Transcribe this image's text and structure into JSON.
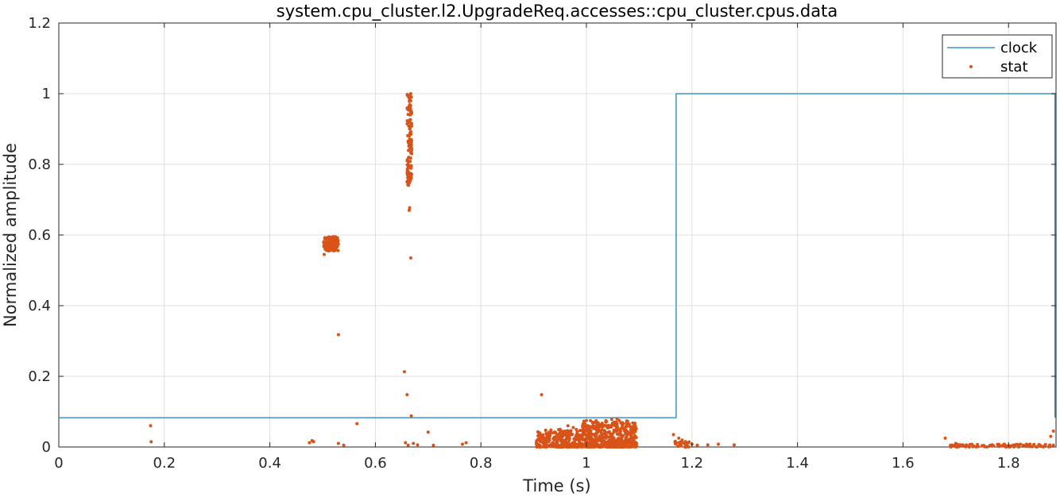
{
  "chart_data": {
    "type": "line+scatter",
    "title": "system.cpu_cluster.l2.UpgradeReq.accesses::cpu_cluster.cpus.data",
    "xlabel": "Time (s)",
    "ylabel": "Normalized amplitude",
    "xlim": [
      0,
      1.89
    ],
    "ylim": [
      0,
      1.2
    ],
    "xticks": [
      0,
      0.2,
      0.4,
      0.6,
      0.8,
      1,
      1.2,
      1.4,
      1.6,
      1.8
    ],
    "xtick_labels": [
      "0",
      "0.2",
      "0.4",
      "0.6",
      "0.8",
      "1",
      "1.2",
      "1.4",
      "1.6",
      "1.8"
    ],
    "yticks": [
      0,
      0.2,
      0.4,
      0.6,
      0.8,
      1,
      1.2
    ],
    "ytick_labels": [
      "0",
      "0.2",
      "0.4",
      "0.6",
      "0.8",
      "1",
      "1.2"
    ],
    "grid": true,
    "legend_position": "top-right",
    "series": [
      {
        "name": "clock",
        "kind": "step-line",
        "color": "#3b95c4",
        "x": [
          0,
          1.17,
          1.17,
          1.888,
          1.888
        ],
        "y": [
          0.083,
          0.083,
          1.0,
          1.0,
          0.083
        ]
      },
      {
        "name": "stat",
        "kind": "scatter",
        "color": "#d95319",
        "points": [
          [
            0.174,
            0.06
          ],
          [
            0.175,
            0.015
          ],
          [
            0.475,
            0.012
          ],
          [
            0.48,
            0.018
          ],
          [
            0.483,
            0.015
          ],
          [
            0.502,
            0.58
          ],
          [
            0.503,
            0.57
          ],
          [
            0.503,
            0.545
          ],
          [
            0.504,
            0.59
          ],
          [
            0.506,
            0.575
          ],
          [
            0.508,
            0.565
          ],
          [
            0.51,
            0.585
          ],
          [
            0.512,
            0.57
          ],
          [
            0.514,
            0.58
          ],
          [
            0.516,
            0.56
          ],
          [
            0.518,
            0.575
          ],
          [
            0.52,
            0.59
          ],
          [
            0.522,
            0.57
          ],
          [
            0.524,
            0.58
          ],
          [
            0.526,
            0.565
          ],
          [
            0.528,
            0.575
          ],
          [
            0.529,
            0.585
          ],
          [
            0.53,
            0.318
          ],
          [
            0.53,
            0.01
          ],
          [
            0.565,
            0.066
          ],
          [
            0.54,
            0.005
          ],
          [
            0.655,
            0.213
          ],
          [
            0.657,
            0.012
          ],
          [
            0.66,
            0.148
          ],
          [
            0.662,
            0.005
          ],
          [
            0.66,
            0.75
          ],
          [
            0.661,
            0.77
          ],
          [
            0.662,
            0.8
          ],
          [
            0.663,
            0.82
          ],
          [
            0.663,
            0.84
          ],
          [
            0.664,
            0.86
          ],
          [
            0.664,
            0.88
          ],
          [
            0.665,
            0.9
          ],
          [
            0.665,
            0.92
          ],
          [
            0.666,
            0.94
          ],
          [
            0.666,
            0.96
          ],
          [
            0.667,
            0.98
          ],
          [
            0.667,
            1.0
          ],
          [
            0.668,
            0.95
          ],
          [
            0.668,
            0.87
          ],
          [
            0.669,
            0.83
          ],
          [
            0.662,
            0.78
          ],
          [
            0.663,
            0.76
          ],
          [
            0.664,
            0.67
          ],
          [
            0.665,
            0.677
          ],
          [
            0.667,
            0.535
          ],
          [
            0.668,
            0.088
          ],
          [
            0.672,
            0.01
          ],
          [
            0.68,
            0.006
          ],
          [
            0.7,
            0.042
          ],
          [
            0.71,
            0.005
          ],
          [
            0.765,
            0.008
          ],
          [
            0.772,
            0.012
          ],
          [
            0.915,
            0.148
          ],
          [
            0.905,
            0.01
          ],
          [
            0.91,
            0.02
          ],
          [
            0.92,
            0.015
          ],
          [
            0.925,
            0.03
          ],
          [
            0.93,
            0.025
          ],
          [
            0.935,
            0.04
          ],
          [
            0.94,
            0.02
          ],
          [
            0.945,
            0.035
          ],
          [
            0.95,
            0.05
          ],
          [
            0.955,
            0.03
          ],
          [
            0.96,
            0.045
          ],
          [
            0.965,
            0.06
          ],
          [
            0.97,
            0.04
          ],
          [
            0.975,
            0.055
          ],
          [
            0.98,
            0.03
          ],
          [
            0.985,
            0.02
          ],
          [
            0.99,
            0.01
          ],
          [
            0.995,
            0.045
          ],
          [
            1.0,
            0.075
          ],
          [
            1.003,
            0.06
          ],
          [
            1.008,
            0.055
          ],
          [
            1.012,
            0.07
          ],
          [
            1.018,
            0.05
          ],
          [
            1.022,
            0.065
          ],
          [
            1.028,
            0.04
          ],
          [
            1.032,
            0.06
          ],
          [
            1.038,
            0.072
          ],
          [
            1.042,
            0.055
          ],
          [
            1.048,
            0.078
          ],
          [
            1.052,
            0.065
          ],
          [
            1.058,
            0.08
          ],
          [
            1.062,
            0.075
          ],
          [
            1.068,
            0.06
          ],
          [
            1.072,
            0.05
          ],
          [
            1.078,
            0.04
          ],
          [
            1.085,
            0.03
          ],
          [
            1.09,
            0.02
          ],
          [
            1.095,
            0.01
          ],
          [
            1.165,
            0.035
          ],
          [
            1.17,
            0.012
          ],
          [
            1.175,
            0.025
          ],
          [
            1.18,
            0.015
          ],
          [
            1.19,
            0.01
          ],
          [
            1.2,
            0.008
          ],
          [
            1.21,
            0.005
          ],
          [
            1.23,
            0.006
          ],
          [
            1.25,
            0.008
          ],
          [
            1.28,
            0.006
          ],
          [
            1.68,
            0.025
          ],
          [
            1.69,
            0.005
          ],
          [
            1.7,
            0.01
          ],
          [
            1.72,
            0.006
          ],
          [
            1.75,
            0.004
          ],
          [
            1.78,
            0.006
          ],
          [
            1.8,
            0.004
          ],
          [
            1.82,
            0.005
          ],
          [
            1.84,
            0.007
          ],
          [
            1.86,
            0.005
          ],
          [
            1.87,
            0.006
          ],
          [
            1.88,
            0.03
          ],
          [
            1.885,
            0.045
          ]
        ]
      }
    ]
  }
}
